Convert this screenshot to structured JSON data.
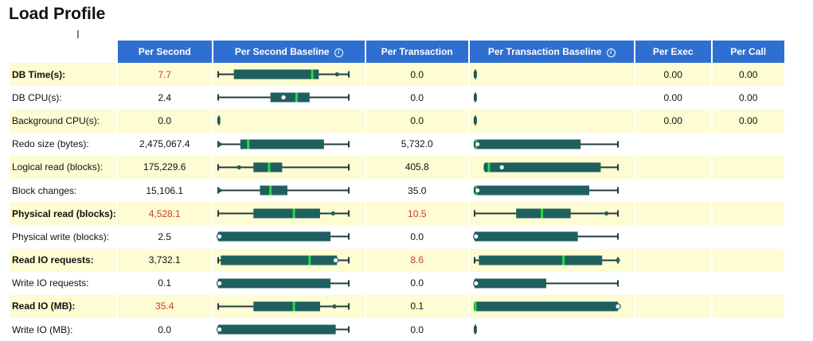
{
  "page": {
    "title": "Load Profile"
  },
  "table": {
    "columns": [
      {
        "label": ""
      },
      {
        "label": "Per Second"
      },
      {
        "label": "Per Second Baseline",
        "info_icon": "info-icon"
      },
      {
        "label": "Per Transaction"
      },
      {
        "label": "Per Transaction Baseline",
        "info_icon": "info-icon"
      },
      {
        "label": "Per Exec"
      },
      {
        "label": "Per Call"
      }
    ],
    "rows": [
      {
        "name": "DB Time(s):",
        "bold": true,
        "per_second": "7.7",
        "per_second_red": true,
        "per_transaction": "0.0",
        "per_transaction_red": false,
        "per_exec": "0.00",
        "per_call": "0.00",
        "ps_base": {
          "wmin": 0,
          "q1": 0.12,
          "med": 0.72,
          "q3": 0.77,
          "wmax": 1,
          "dot": 0.91,
          "dot_style": "filled"
        },
        "pt_base": {
          "wmin": 0,
          "q1": 0,
          "med": 0.005,
          "q3": 0.01,
          "wmax": 0.01,
          "dot": null
        }
      },
      {
        "name": "DB CPU(s):",
        "bold": false,
        "per_second": "2.4",
        "per_second_red": false,
        "per_transaction": "0.0",
        "per_transaction_red": false,
        "per_exec": "0.00",
        "per_call": "0.00",
        "ps_base": {
          "wmin": 0,
          "q1": 0.4,
          "med": 0.6,
          "q3": 0.7,
          "wmax": 1,
          "dot": 0.5,
          "dot_style": "hollow"
        },
        "pt_base": {
          "wmin": 0,
          "q1": 0,
          "med": 0.005,
          "q3": 0.01,
          "wmax": 0.01,
          "dot": null
        }
      },
      {
        "name": "Background CPU(s):",
        "bold": false,
        "per_second": "0.0",
        "per_second_red": false,
        "per_transaction": "0.0",
        "per_transaction_red": false,
        "per_exec": "0.00",
        "per_call": "0.00",
        "ps_base": {
          "wmin": 0,
          "q1": 0,
          "med": 0.005,
          "q3": 0.01,
          "wmax": 0.01,
          "dot": null
        },
        "pt_base": {
          "wmin": 0,
          "q1": 0,
          "med": 0.005,
          "q3": 0.01,
          "wmax": 0.01,
          "dot": null
        }
      },
      {
        "name": "Redo size (bytes):",
        "bold": false,
        "per_second": "2,475,067.4",
        "per_second_red": false,
        "per_transaction": "5,732.0",
        "per_transaction_red": false,
        "per_exec": "",
        "per_call": "",
        "ps_base": {
          "wmin": 0,
          "q1": 0.17,
          "med": 0.23,
          "q3": 0.81,
          "wmax": 1,
          "dot": 0.01,
          "dot_style": "filled"
        },
        "pt_base": {
          "wmin": 0,
          "q1": 0,
          "med": 0.01,
          "q3": 0.74,
          "wmax": 1,
          "dot": 0.02,
          "dot_style": "hollow"
        }
      },
      {
        "name": "Logical read (blocks):",
        "bold": false,
        "per_second": "175,229.6",
        "per_second_red": false,
        "per_transaction": "405.8",
        "per_transaction_red": false,
        "per_exec": "",
        "per_call": "",
        "ps_base": {
          "wmin": 0,
          "q1": 0.27,
          "med": 0.39,
          "q3": 0.49,
          "wmax": 1,
          "dot": 0.16,
          "dot_style": "filled"
        },
        "pt_base": {
          "wmin": 0.07,
          "q1": 0.07,
          "med": 0.1,
          "q3": 0.88,
          "wmax": 1,
          "dot": 0.19,
          "dot_style": "hollow"
        }
      },
      {
        "name": "Block changes:",
        "bold": false,
        "per_second": "15,106.1",
        "per_second_red": false,
        "per_transaction": "35.0",
        "per_transaction_red": false,
        "per_exec": "",
        "per_call": "",
        "ps_base": {
          "wmin": 0,
          "q1": 0.32,
          "med": 0.4,
          "q3": 0.53,
          "wmax": 1,
          "dot": 0.01,
          "dot_style": "filled"
        },
        "pt_base": {
          "wmin": 0,
          "q1": 0,
          "med": 0.01,
          "q3": 0.8,
          "wmax": 1,
          "dot": 0.02,
          "dot_style": "hollow"
        }
      },
      {
        "name": "Physical read (blocks):",
        "bold": true,
        "per_second": "4,528.1",
        "per_second_red": true,
        "per_transaction": "10.5",
        "per_transaction_red": true,
        "per_exec": "",
        "per_call": "",
        "ps_base": {
          "wmin": 0,
          "q1": 0.27,
          "med": 0.58,
          "q3": 0.78,
          "wmax": 1,
          "dot": 0.88,
          "dot_style": "filled"
        },
        "pt_base": {
          "wmin": 0,
          "q1": 0.29,
          "med": 0.47,
          "q3": 0.67,
          "wmax": 1,
          "dot": 0.92,
          "dot_style": "filled"
        }
      },
      {
        "name": "Physical write (blocks):",
        "bold": false,
        "per_second": "2.5",
        "per_second_red": false,
        "per_transaction": "0.0",
        "per_transaction_red": false,
        "per_exec": "",
        "per_call": "",
        "ps_base": {
          "wmin": 0,
          "q1": 0,
          "med": null,
          "q3": 0.86,
          "wmax": 1,
          "dot": 0.01,
          "dot_style": "hollow"
        },
        "pt_base": {
          "wmin": 0,
          "q1": 0,
          "med": null,
          "q3": 0.72,
          "wmax": 1,
          "dot": 0.01,
          "dot_style": "hollow"
        }
      },
      {
        "name": "Read IO requests:",
        "bold": true,
        "per_second": "3,732.1",
        "per_second_red": false,
        "per_transaction": "8.6",
        "per_transaction_red": true,
        "per_exec": "",
        "per_call": "",
        "ps_base": {
          "wmin": 0,
          "q1": 0.02,
          "med": 0.7,
          "q3": 0.91,
          "wmax": 1,
          "dot": 0.9,
          "dot_style": "hollow"
        },
        "pt_base": {
          "wmin": 0,
          "q1": 0.03,
          "med": 0.62,
          "q3": 0.89,
          "wmax": 1,
          "dot": 1.0,
          "dot_style": "filled"
        }
      },
      {
        "name": "Write IO requests:",
        "bold": false,
        "per_second": "0.1",
        "per_second_red": false,
        "per_transaction": "0.0",
        "per_transaction_red": false,
        "per_exec": "",
        "per_call": "",
        "ps_base": {
          "wmin": 0,
          "q1": 0,
          "med": null,
          "q3": 0.86,
          "wmax": 1,
          "dot": 0.01,
          "dot_style": "hollow"
        },
        "pt_base": {
          "wmin": 0,
          "q1": 0,
          "med": null,
          "q3": 0.5,
          "wmax": 1,
          "dot": 0.01,
          "dot_style": "hollow"
        }
      },
      {
        "name": "Read IO (MB):",
        "bold": true,
        "per_second": "35.4",
        "per_second_red": true,
        "per_transaction": "0.1",
        "per_transaction_red": false,
        "per_exec": "",
        "per_call": "",
        "ps_base": {
          "wmin": 0,
          "q1": 0.27,
          "med": 0.58,
          "q3": 0.78,
          "wmax": 1,
          "dot": 0.89,
          "dot_style": "filled"
        },
        "pt_base": {
          "wmin": 0,
          "q1": 0,
          "med": 0.005,
          "q3": 1,
          "wmax": 1,
          "dot": 1.0,
          "dot_style": "hollow"
        }
      },
      {
        "name": "Write IO (MB):",
        "bold": false,
        "per_second": "0.0",
        "per_second_red": false,
        "per_transaction": "0.0",
        "per_transaction_red": false,
        "per_exec": "",
        "per_call": "",
        "ps_base": {
          "wmin": 0,
          "q1": 0,
          "med": null,
          "q3": 0.9,
          "wmax": 1,
          "dot": 0.01,
          "dot_style": "hollow"
        },
        "pt_base": {
          "wmin": 0,
          "q1": 0,
          "med": 0.005,
          "q3": 0.01,
          "wmax": 0.01,
          "dot": null
        }
      }
    ]
  },
  "colors": {
    "header_bg": "#2f6fd1",
    "row_alt": "#fdfcd2",
    "box_fill": "#1f5f5f",
    "median": "#22dd44",
    "red_value": "#d23a2a"
  },
  "icons": {
    "cursor": "text-cursor-icon",
    "info": "info-icon"
  }
}
